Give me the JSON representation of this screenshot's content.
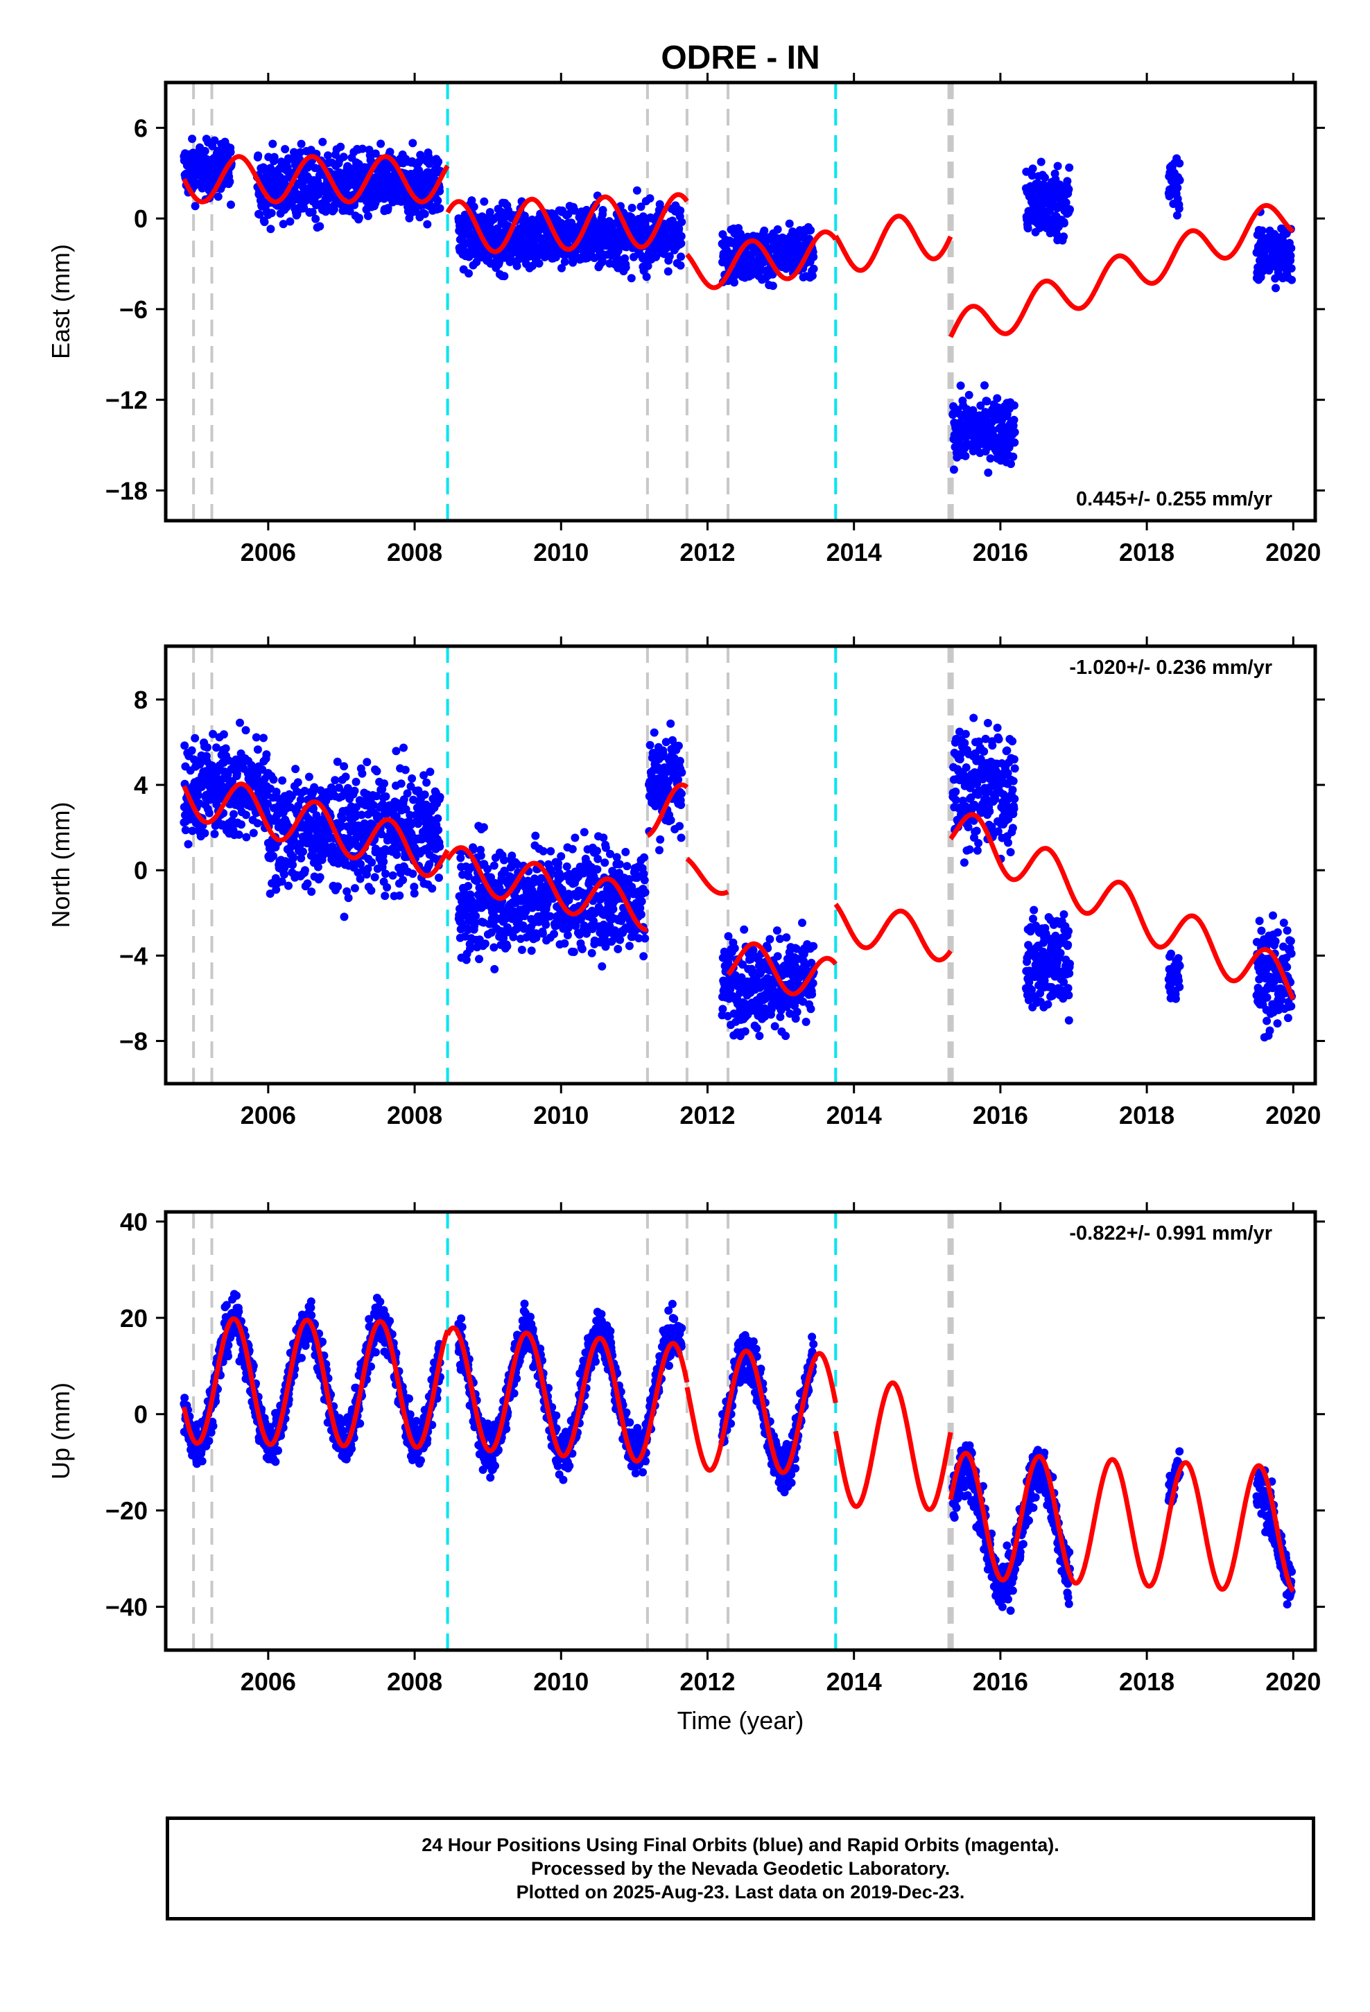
{
  "page_title": "ODRE - IN",
  "xlabel": "Time (year)",
  "footer": {
    "line1": "24 Hour Positions Using Final Orbits (blue) and Rapid Orbits (magenta).",
    "line2": "Processed by the Nevada Geodetic Laboratory.",
    "line3": "Plotted on 2025-Aug-23. Last data on 2019-Dec-23."
  },
  "colors": {
    "final_orbits": "#0000ff",
    "model_fit": "#ff0000",
    "equipment_change_line": "#c8c8c8",
    "earthquake_line": "#00e5ee",
    "axis": "#000000"
  },
  "chart_data": [
    {
      "type": "scatter",
      "name": "east",
      "ylabel": "East (mm)",
      "xlim": [
        2004.6,
        2020.3
      ],
      "ylim": [
        -20,
        9
      ],
      "x_ticks": [
        2006,
        2008,
        2010,
        2012,
        2014,
        2016,
        2018,
        2020
      ],
      "y_ticks": [
        6,
        0,
        -6,
        -12,
        -18
      ],
      "y_tick_labels": [
        "6",
        "0",
        "−6",
        "−12",
        "−18"
      ],
      "velocity_label": "0.445+/- 0.255 mm/yr",
      "velocity_label_position": "bottom-right",
      "vertical_lines": [
        {
          "x": 2004.98,
          "kind": "equipment"
        },
        {
          "x": 2005.23,
          "kind": "equipment"
        },
        {
          "x": 2008.45,
          "kind": "earthquake"
        },
        {
          "x": 2011.18,
          "kind": "equipment"
        },
        {
          "x": 2011.72,
          "kind": "equipment"
        },
        {
          "x": 2012.28,
          "kind": "equipment"
        },
        {
          "x": 2013.75,
          "kind": "earthquake"
        },
        {
          "x": 2015.32,
          "kind": "equipment-thick"
        }
      ],
      "data_segments": [
        {
          "start": 2004.85,
          "end": 2005.5,
          "center": 3.2,
          "spread": 1.3
        },
        {
          "start": 2005.85,
          "end": 2008.35,
          "center": 2.2,
          "spread": 1.6
        },
        {
          "start": 2008.6,
          "end": 2011.65,
          "center": -1.2,
          "spread": 1.5
        },
        {
          "start": 2012.2,
          "end": 2013.45,
          "center": -2.4,
          "spread": 1.2
        },
        {
          "start": 2015.35,
          "end": 2016.2,
          "center": -14.0,
          "spread": 1.5
        },
        {
          "start": 2016.35,
          "end": 2016.95,
          "center": 1.0,
          "spread": 1.8
        },
        {
          "start": 2018.3,
          "end": 2018.45,
          "center": 2.3,
          "spread": 1.2
        },
        {
          "start": 2019.5,
          "end": 2019.98,
          "center": -2.4,
          "spread": 1.5
        }
      ],
      "model_segments": [
        {
          "x": [
            2004.85,
            2008.45
          ],
          "level": [
            2.6,
            2.6
          ],
          "amplitude": 1.5,
          "phase": 0.35
        },
        {
          "x": [
            2008.45,
            2011.72
          ],
          "level": [
            -0.6,
            -0.1
          ],
          "amplitude": 1.7,
          "phase": 0.35
        },
        {
          "x": [
            2011.72,
            2013.75
          ],
          "level": [
            -3.4,
            -2.2
          ],
          "amplitude": 1.4,
          "phase": 0.35
        },
        {
          "x": [
            2013.75,
            2015.32
          ],
          "level": [
            -2.1,
            -0.9
          ],
          "amplitude": 1.6,
          "phase": 0.35
        },
        {
          "x": [
            2015.32,
            2020.0
          ],
          "level": [
            -7.6,
            0.2
          ],
          "amplitude": 1.3,
          "phase": 0.35
        }
      ]
    },
    {
      "type": "scatter",
      "name": "north",
      "ylabel": "North (mm)",
      "xlim": [
        2004.6,
        2020.3
      ],
      "ylim": [
        -10,
        10.5
      ],
      "x_ticks": [
        2006,
        2008,
        2010,
        2012,
        2014,
        2016,
        2018,
        2020
      ],
      "y_ticks": [
        8,
        4,
        0,
        -4,
        -8
      ],
      "y_tick_labels": [
        "8",
        "4",
        "0",
        "−4",
        "−8"
      ],
      "velocity_label": "-1.020+/- 0.236 mm/yr",
      "velocity_label_position": "top-right",
      "vertical_lines": [
        {
          "x": 2004.98,
          "kind": "equipment"
        },
        {
          "x": 2005.23,
          "kind": "equipment"
        },
        {
          "x": 2008.45,
          "kind": "earthquake"
        },
        {
          "x": 2011.18,
          "kind": "equipment"
        },
        {
          "x": 2011.72,
          "kind": "equipment"
        },
        {
          "x": 2012.28,
          "kind": "equipment"
        },
        {
          "x": 2013.75,
          "kind": "earthquake"
        },
        {
          "x": 2015.32,
          "kind": "equipment-thick"
        }
      ],
      "data_segments": [
        {
          "start": 2004.85,
          "end": 2006.0,
          "center": 3.8,
          "spread": 1.7
        },
        {
          "start": 2006.0,
          "end": 2008.35,
          "center": 1.8,
          "spread": 1.9
        },
        {
          "start": 2008.6,
          "end": 2011.15,
          "center": -1.3,
          "spread": 1.8
        },
        {
          "start": 2011.2,
          "end": 2011.65,
          "center": 4.2,
          "spread": 1.7
        },
        {
          "start": 2012.2,
          "end": 2013.45,
          "center": -5.3,
          "spread": 1.5
        },
        {
          "start": 2015.35,
          "end": 2016.2,
          "center": 3.8,
          "spread": 1.9
        },
        {
          "start": 2016.35,
          "end": 2016.95,
          "center": -4.3,
          "spread": 1.5
        },
        {
          "start": 2018.3,
          "end": 2018.45,
          "center": -5.0,
          "spread": 0.8
        },
        {
          "start": 2019.5,
          "end": 2019.98,
          "center": -5.0,
          "spread": 1.8
        }
      ],
      "model_segments": [
        {
          "x": [
            2004.85,
            2008.45
          ],
          "level": [
            3.6,
            0.6
          ],
          "amplitude": 1.1,
          "phase": 0.4
        },
        {
          "x": [
            2008.45,
            2011.18
          ],
          "level": [
            0.2,
            -1.8
          ],
          "amplitude": 1.0,
          "phase": 0.4
        },
        {
          "x": [
            2011.18,
            2011.72
          ],
          "level": [
            2.8,
            2.8
          ],
          "amplitude": 1.2,
          "phase": 0.4
        },
        {
          "x": [
            2011.72,
            2012.28
          ],
          "level": [
            0.0,
            -0.6
          ],
          "amplitude": 0.6,
          "phase": 0.4
        },
        {
          "x": [
            2012.28,
            2013.75
          ],
          "level": [
            -4.2,
            -5.2
          ],
          "amplitude": 1.0,
          "phase": 0.4
        },
        {
          "x": [
            2013.75,
            2015.32
          ],
          "level": [
            -2.4,
            -3.3
          ],
          "amplitude": 1.0,
          "phase": 0.4
        },
        {
          "x": [
            2015.32,
            2020.0
          ],
          "level": [
            2.0,
            -5.4
          ],
          "amplitude": 1.1,
          "phase": 0.4
        }
      ]
    },
    {
      "type": "scatter",
      "name": "up",
      "ylabel": "Up (mm)",
      "xlim": [
        2004.6,
        2020.3
      ],
      "ylim": [
        -49,
        42
      ],
      "x_ticks": [
        2006,
        2008,
        2010,
        2012,
        2014,
        2016,
        2018,
        2020
      ],
      "y_ticks": [
        40,
        20,
        0,
        -20,
        -40
      ],
      "y_tick_labels": [
        "40",
        "20",
        "0",
        "−20",
        "−40"
      ],
      "velocity_label": "-0.822+/- 0.991 mm/yr",
      "velocity_label_position": "top-right",
      "vertical_lines": [
        {
          "x": 2004.98,
          "kind": "equipment"
        },
        {
          "x": 2005.23,
          "kind": "equipment"
        },
        {
          "x": 2008.45,
          "kind": "earthquake"
        },
        {
          "x": 2011.18,
          "kind": "equipment"
        },
        {
          "x": 2011.72,
          "kind": "equipment"
        },
        {
          "x": 2012.28,
          "kind": "equipment"
        },
        {
          "x": 2013.75,
          "kind": "earthquake"
        },
        {
          "x": 2015.32,
          "kind": "equipment-thick"
        }
      ],
      "data_segments": [
        {
          "start": 2004.85,
          "end": 2008.35,
          "center": 6.5,
          "spread": 3.5,
          "seasonal": 12.5
        },
        {
          "start": 2008.6,
          "end": 2011.65,
          "center": 4.5,
          "spread": 3.5,
          "seasonal": 12.5
        },
        {
          "start": 2012.2,
          "end": 2013.45,
          "center": 0.5,
          "spread": 3.5,
          "seasonal": 12.0
        },
        {
          "start": 2015.35,
          "end": 2016.95,
          "center": -24.0,
          "spread": 4.0,
          "seasonal": 12.0
        },
        {
          "start": 2018.3,
          "end": 2018.45,
          "center": -16.0,
          "spread": 3.0,
          "seasonal": 5.0
        },
        {
          "start": 2019.5,
          "end": 2019.98,
          "center": -26.0,
          "spread": 4.0,
          "seasonal": 10.0
        }
      ],
      "model_segments": [
        {
          "x": [
            2004.85,
            2008.45
          ],
          "level": [
            7.0,
            6.0
          ],
          "amplitude": 13.0,
          "phase": 0.28
        },
        {
          "x": [
            2008.45,
            2011.72
          ],
          "level": [
            5.5,
            2.0
          ],
          "amplitude": 12.5,
          "phase": 0.28
        },
        {
          "x": [
            2011.72,
            2013.75
          ],
          "level": [
            1.0,
            0.0
          ],
          "amplitude": 12.5,
          "phase": 0.28
        },
        {
          "x": [
            2013.75,
            2015.32
          ],
          "level": [
            -6.0,
            -7.0
          ],
          "amplitude": 13.0,
          "phase": 0.28
        },
        {
          "x": [
            2015.32,
            2020.0
          ],
          "level": [
            -21.0,
            -24.0
          ],
          "amplitude": 13.0,
          "phase": 0.28
        }
      ]
    }
  ]
}
